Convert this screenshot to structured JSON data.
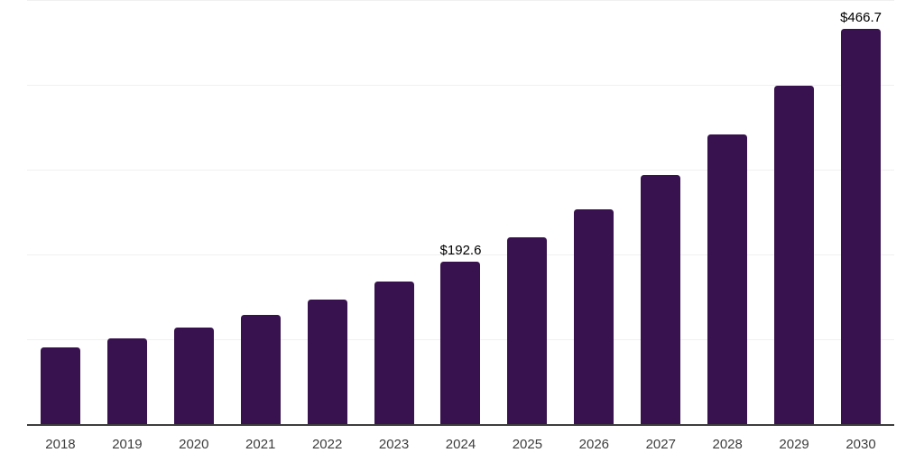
{
  "chart_style": {
    "background_color": "#ffffff",
    "bar_color": "#38124E",
    "gridline_color": "#f0f0f0",
    "axis_line_color": "#3d3d3d",
    "tick_label_color": "#3d3d3d",
    "data_label_color": "#000000"
  },
  "chart_data": {
    "type": "bar",
    "title": "",
    "xlabel": "",
    "ylabel": "",
    "categories": [
      "2018",
      "2019",
      "2020",
      "2021",
      "2022",
      "2023",
      "2024",
      "2025",
      "2026",
      "2027",
      "2028",
      "2029",
      "2030"
    ],
    "values": [
      91,
      102,
      115,
      130,
      148,
      169,
      192.6,
      221,
      254,
      295,
      343,
      400,
      466.7
    ],
    "data_labels": [
      "",
      "",
      "",
      "",
      "",
      "",
      "$192.6",
      "",
      "",
      "",
      "",
      "",
      "$466.7"
    ],
    "ylim": [
      0,
      500
    ],
    "grid_step": 100,
    "grid": "horizontal",
    "y_axis_tick_labels_visible": false,
    "legend_position": "none"
  }
}
